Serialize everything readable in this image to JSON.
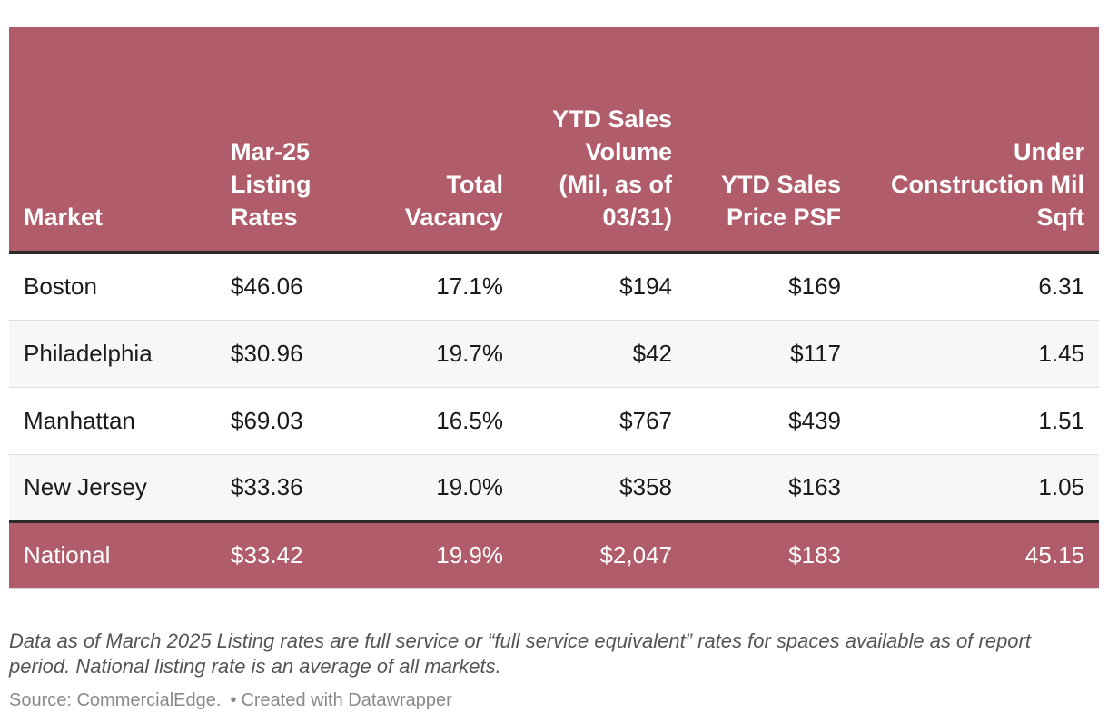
{
  "colors": {
    "header_bg": "#b05c6a",
    "header_text": "#ffffff",
    "rule": "#2b2b2b",
    "alt_row": "#f7f7f7"
  },
  "chart_data": {
    "type": "table",
    "columns": [
      {
        "label": "Market",
        "align": "left"
      },
      {
        "label": "Mar-25 Listing Rates",
        "align": "left"
      },
      {
        "label": "Total Vacancy",
        "align": "right"
      },
      {
        "label": "YTD Sales Volume (Mil, as of 03/31)",
        "align": "right"
      },
      {
        "label": "YTD Sales Price PSF",
        "align": "right"
      },
      {
        "label": "Under Construction Mil Sqft",
        "align": "right"
      }
    ],
    "rows": [
      [
        "Boston",
        "$46.06",
        "17.1%",
        "$194",
        "$169",
        "6.31"
      ],
      [
        "Philadelphia",
        "$30.96",
        "19.7%",
        "$42",
        "$117",
        "1.45"
      ],
      [
        "Manhattan",
        "$69.03",
        "16.5%",
        "$767",
        "$439",
        "1.51"
      ],
      [
        "New Jersey",
        "$33.36",
        "19.0%",
        "$358",
        "$163",
        "1.05"
      ]
    ],
    "total_row": [
      "National",
      "$33.42",
      "19.9%",
      "$2,047",
      "$183",
      "45.15"
    ]
  },
  "notes": "Data as of March 2025 Listing rates are full service or “full service equivalent” rates for spaces available as of report period. National listing rate is an average of all markets.",
  "source": {
    "label": "Source: CommercialEdge.",
    "separator": "•",
    "credit": "Created with Datawrapper"
  }
}
